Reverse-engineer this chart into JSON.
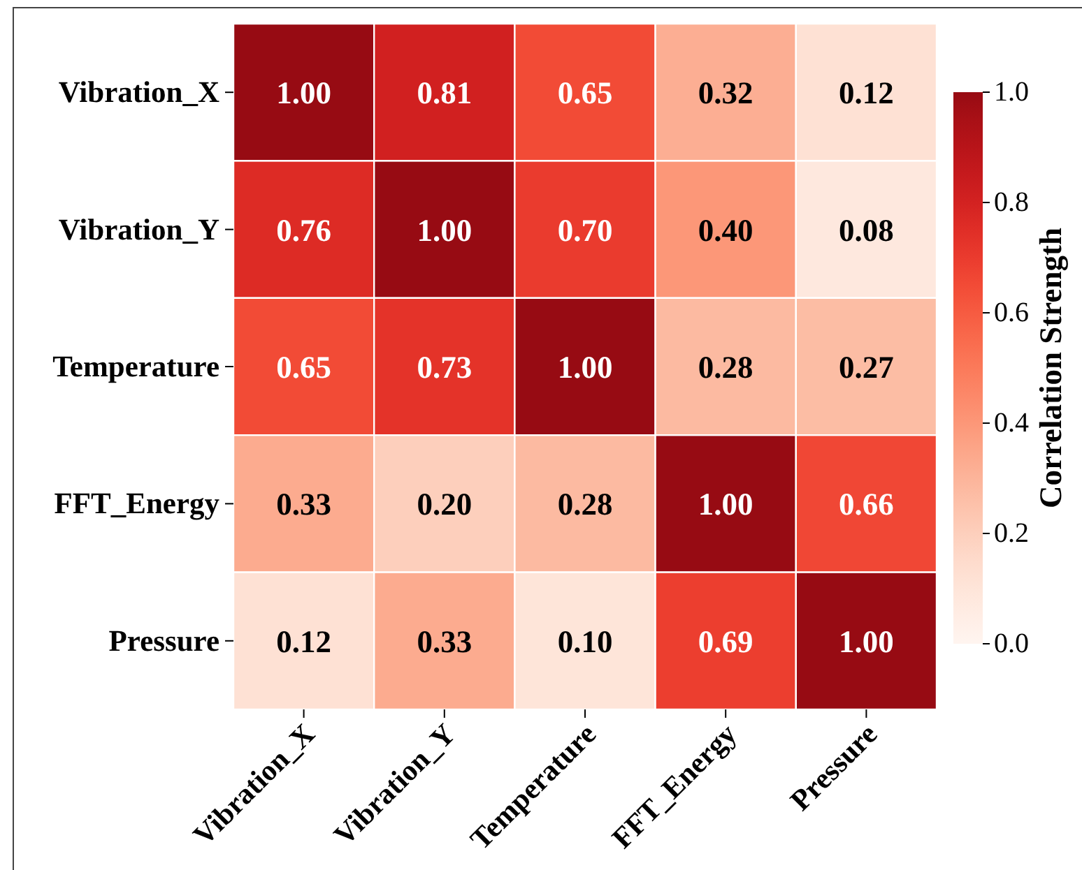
{
  "chart_data": {
    "type": "heatmap",
    "categories": [
      "Vibration_X",
      "Vibration_Y",
      "Temperature",
      "FFT_Energy",
      "Pressure"
    ],
    "y_categories": [
      "Vibration_X",
      "Vibration_Y",
      "Temperature",
      "FFT_Energy",
      "Pressure"
    ],
    "cells": [
      [
        1.0,
        0.81,
        0.65,
        0.32,
        0.12
      ],
      [
        0.76,
        1.0,
        0.7,
        0.4,
        0.08
      ],
      [
        0.65,
        0.73,
        1.0,
        0.28,
        0.27
      ],
      [
        0.33,
        0.2,
        0.28,
        1.0,
        0.66
      ],
      [
        0.12,
        0.33,
        0.1,
        0.69,
        1.0
      ]
    ],
    "cell_labels": [
      [
        "1.00",
        "0.81",
        "0.65",
        "0.32",
        "0.12"
      ],
      [
        "0.76",
        "1.00",
        "0.70",
        "0.40",
        "0.08"
      ],
      [
        "0.65",
        "0.73",
        "1.00",
        "0.28",
        "0.27"
      ],
      [
        "0.33",
        "0.20",
        "0.28",
        "1.00",
        "0.66"
      ],
      [
        "0.12",
        "0.33",
        "0.10",
        "0.69",
        "1.00"
      ]
    ],
    "clim": [
      0,
      1
    ],
    "cticks": [
      {
        "value": 0,
        "label": "0.0"
      },
      0.2,
      0.4,
      0.6,
      0.8,
      {
        "value": 1,
        "label": "1.0"
      }
    ],
    "clabel": "Correlation Strength"
  }
}
